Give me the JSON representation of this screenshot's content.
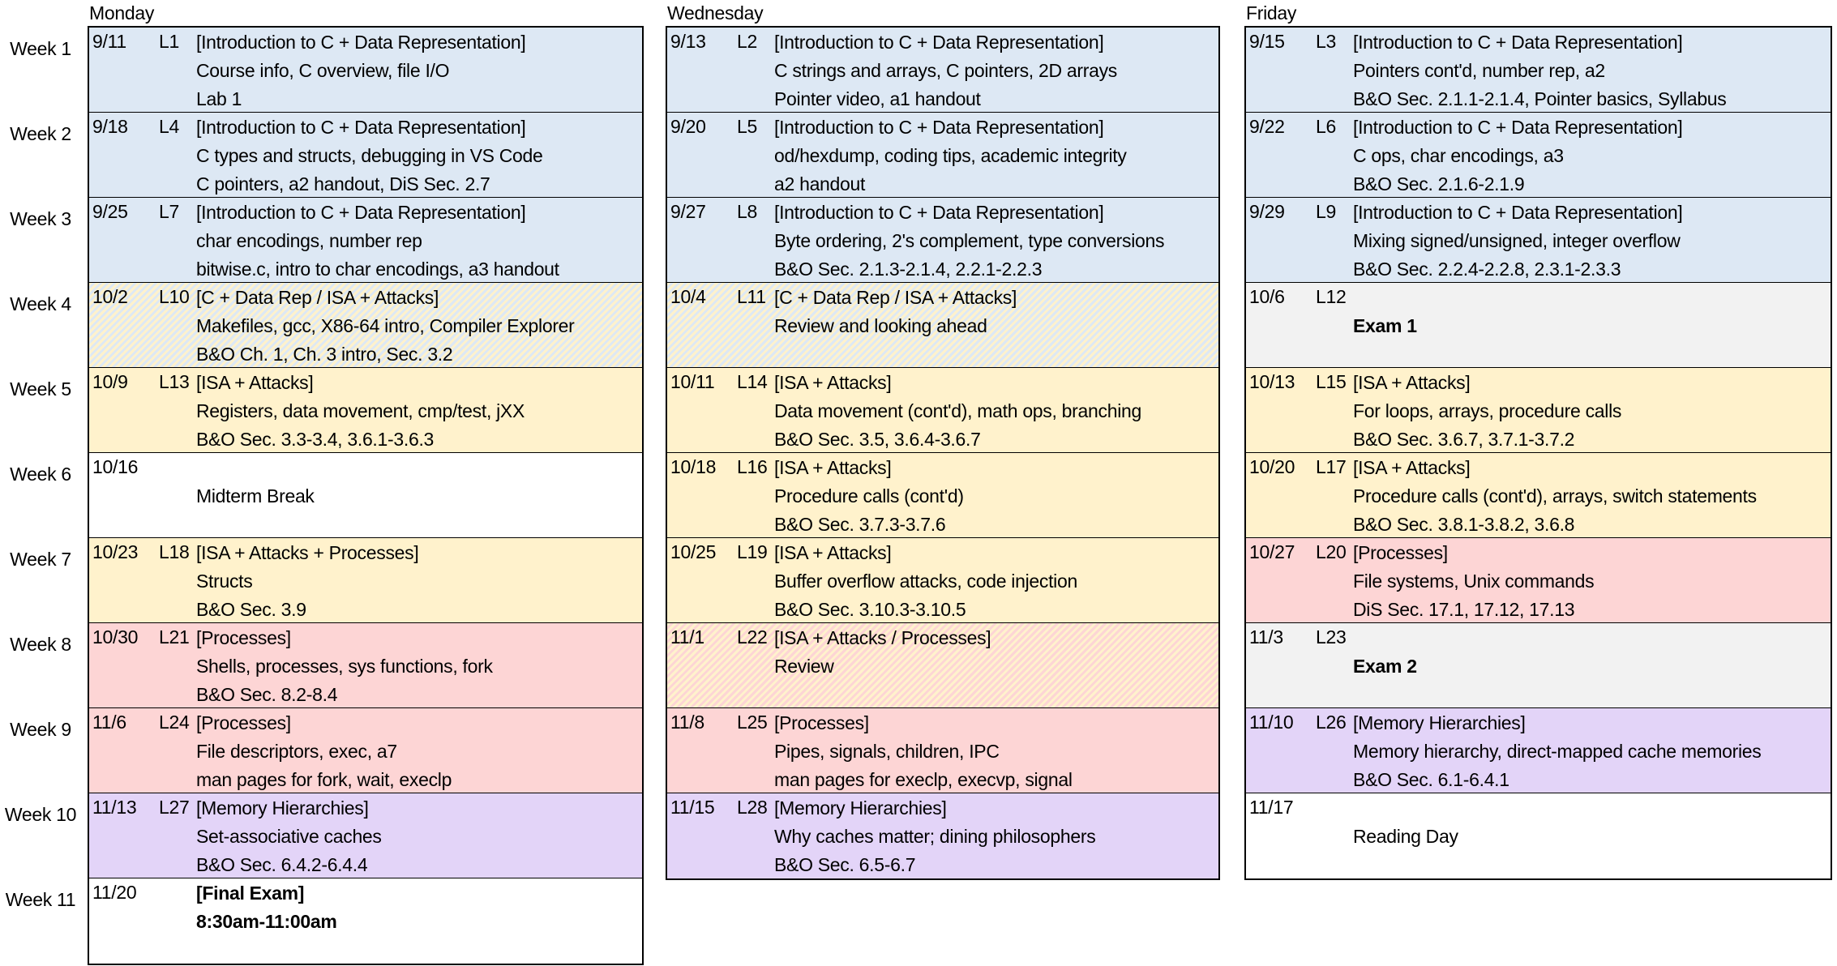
{
  "week_labels": [
    "Week 1",
    "Week 2",
    "Week 3",
    "Week 4",
    "Week 5",
    "Week 6",
    "Week 7",
    "Week 8",
    "Week 9",
    "Week 10",
    "Week 11"
  ],
  "colors": {
    "intro_c_data_rep": "#dde8f4",
    "isa_attacks": "#fff2cc",
    "processes": "#fdd5d5",
    "memory_hierarchies": "#e3d4f8",
    "exam": "#f2f2f2",
    "break": "#ffffff"
  },
  "days": [
    {
      "name": "Monday",
      "rows": [
        {
          "date": "9/11",
          "lecture": "L1",
          "color": "blue",
          "lines": [
            "[Introduction to C + Data Representation]",
            "Course info, C overview, file I/O",
            "Lab 1"
          ]
        },
        {
          "date": "9/18",
          "lecture": "L4",
          "color": "blue",
          "lines": [
            "[Introduction to C + Data Representation]",
            "C types and structs, debugging in VS Code",
            "C pointers, a2 handout, DiS Sec. 2.7"
          ]
        },
        {
          "date": "9/25",
          "lecture": "L7",
          "color": "blue",
          "lines": [
            "[Introduction to C + Data Representation]",
            "char encodings, number rep",
            "bitwise.c, intro to char encodings, a3 handout"
          ]
        },
        {
          "date": "10/2",
          "lecture": "L10",
          "color": "hatch-by",
          "lines": [
            "[C + Data Rep / ISA + Attacks]",
            "Makefiles, gcc, X86-64 intro, Compiler Explorer",
            "B&O Ch. 1, Ch. 3 intro, Sec. 3.2"
          ]
        },
        {
          "date": "10/9",
          "lecture": "L13",
          "color": "yellow",
          "lines": [
            "[ISA + Attacks]",
            "Registers, data movement, cmp/test, jXX",
            "B&O Sec. 3.3-3.4, 3.6.1-3.6.3"
          ]
        },
        {
          "date": "10/16",
          "lecture": "",
          "color": "white",
          "lines": [
            "",
            "Midterm Break",
            ""
          ]
        },
        {
          "date": "10/23",
          "lecture": "L18",
          "color": "yellow",
          "lines": [
            "[ISA + Attacks + Processes]",
            "Structs",
            "B&O Sec. 3.9"
          ]
        },
        {
          "date": "10/30",
          "lecture": "L21",
          "color": "red",
          "lines": [
            "[Processes]",
            "Shells, processes, sys functions, fork",
            "B&O Sec. 8.2-8.4"
          ]
        },
        {
          "date": "11/6",
          "lecture": "L24",
          "color": "red",
          "lines": [
            "[Processes]",
            "File descriptors, exec, a7",
            "man pages for fork, wait, execlp"
          ]
        },
        {
          "date": "11/13",
          "lecture": "L27",
          "color": "purple",
          "lines": [
            "[Memory Hierarchies]",
            "Set-associative caches",
            "B&O Sec. 6.4.2-6.4.4"
          ]
        },
        {
          "date": "11/20",
          "lecture": "",
          "color": "white",
          "bold": true,
          "lines": [
            "[Final Exam]",
            "8:30am-11:00am",
            ""
          ]
        }
      ]
    },
    {
      "name": "Wednesday",
      "rows": [
        {
          "date": "9/13",
          "lecture": "L2",
          "color": "blue",
          "lines": [
            "[Introduction to C + Data Representation]",
            "C strings and arrays, C pointers, 2D arrays",
            "Pointer video, a1 handout"
          ]
        },
        {
          "date": "9/20",
          "lecture": "L5",
          "color": "blue",
          "lines": [
            "[Introduction to C + Data Representation]",
            "od/hexdump, coding tips, academic integrity",
            "a2 handout"
          ]
        },
        {
          "date": "9/27",
          "lecture": "L8",
          "color": "blue",
          "lines": [
            "[Introduction to C + Data Representation]",
            "Byte ordering, 2's complement, type conversions",
            "B&O Sec. 2.1.3-2.1.4, 2.2.1-2.2.3"
          ]
        },
        {
          "date": "10/4",
          "lecture": "L11",
          "color": "hatch-by",
          "lines": [
            "[C + Data Rep / ISA + Attacks]",
            "Review and looking ahead",
            ""
          ]
        },
        {
          "date": "10/11",
          "lecture": "L14",
          "color": "yellow",
          "lines": [
            "[ISA + Attacks]",
            "Data movement (cont'd), math ops, branching",
            "B&O Sec. 3.5, 3.6.4-3.6.7"
          ]
        },
        {
          "date": "10/18",
          "lecture": "L16",
          "color": "yellow",
          "lines": [
            "[ISA + Attacks]",
            "Procedure calls (cont'd)",
            "B&O Sec. 3.7.3-3.7.6"
          ]
        },
        {
          "date": "10/25",
          "lecture": "L19",
          "color": "yellow",
          "lines": [
            "[ISA + Attacks]",
            "Buffer overflow attacks, code injection",
            "B&O Sec. 3.10.3-3.10.5"
          ]
        },
        {
          "date": "11/1",
          "lecture": "L22",
          "color": "hatch-yr",
          "lines": [
            "[ISA + Attacks / Processes]",
            "Review",
            ""
          ]
        },
        {
          "date": "11/8",
          "lecture": "L25",
          "color": "red",
          "lines": [
            "[Processes]",
            "Pipes, signals, children, IPC",
            "man pages for execlp, execvp, signal"
          ]
        },
        {
          "date": "11/15",
          "lecture": "L28",
          "color": "purple",
          "lines": [
            "[Memory Hierarchies]",
            "Why caches matter; dining philosophers",
            "B&O Sec. 6.5-6.7"
          ]
        }
      ]
    },
    {
      "name": "Friday",
      "rows": [
        {
          "date": "9/15",
          "lecture": "L3",
          "color": "blue",
          "lines": [
            "[Introduction to C + Data Representation]",
            "Pointers cont'd, number rep, a2",
            "B&O Sec. 2.1.1-2.1.4, Pointer basics, Syllabus"
          ]
        },
        {
          "date": "9/22",
          "lecture": "L6",
          "color": "blue",
          "lines": [
            "[Introduction to C + Data Representation]",
            "C ops, char encodings, a3",
            "B&O Sec. 2.1.6-2.1.9"
          ]
        },
        {
          "date": "9/29",
          "lecture": "L9",
          "color": "blue",
          "lines": [
            "[Introduction to C + Data Representation]",
            "Mixing signed/unsigned, integer overflow",
            "B&O Sec. 2.2.4-2.2.8, 2.3.1-2.3.3"
          ]
        },
        {
          "date": "10/6",
          "lecture": "L12",
          "color": "gray",
          "bold_middle": true,
          "lines": [
            "",
            "Exam 1",
            ""
          ]
        },
        {
          "date": "10/13",
          "lecture": "L15",
          "color": "yellow",
          "lines": [
            "[ISA + Attacks]",
            "For loops, arrays, procedure calls",
            "B&O Sec. 3.6.7, 3.7.1-3.7.2"
          ]
        },
        {
          "date": "10/20",
          "lecture": "L17",
          "color": "yellow",
          "lines": [
            "[ISA + Attacks]",
            "Procedure calls (cont'd), arrays, switch statements",
            "B&O Sec. 3.8.1-3.8.2, 3.6.8"
          ]
        },
        {
          "date": "10/27",
          "lecture": "L20",
          "color": "red",
          "lines": [
            "[Processes]",
            "File systems, Unix commands",
            "DiS Sec. 17.1, 17.12, 17.13"
          ]
        },
        {
          "date": "11/3",
          "lecture": "L23",
          "color": "gray",
          "bold_middle": true,
          "lines": [
            "",
            "Exam 2",
            ""
          ]
        },
        {
          "date": "11/10",
          "lecture": "L26",
          "color": "purple",
          "lines": [
            "[Memory Hierarchies]",
            "Memory hierarchy, direct-mapped cache memories",
            "B&O Sec. 6.1-6.4.1"
          ]
        },
        {
          "date": "11/17",
          "lecture": "",
          "color": "white",
          "lines": [
            "",
            "Reading Day",
            ""
          ]
        }
      ]
    }
  ]
}
